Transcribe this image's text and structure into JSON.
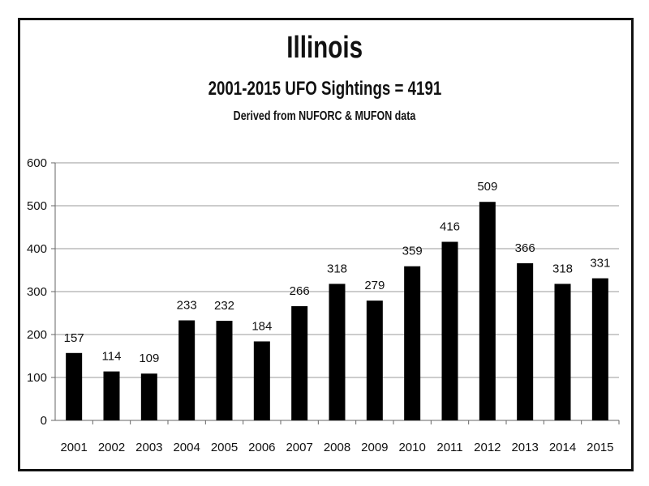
{
  "chart_data": {
    "type": "bar",
    "title": "Illinois",
    "subtitle": "2001-2015  UFO Sightings = 4191",
    "note": "Derived from NUFORC & MUFON data",
    "xlabel": "",
    "ylabel": "",
    "ylim": [
      0,
      600
    ],
    "yticks": [
      0,
      100,
      200,
      300,
      400,
      500,
      600
    ],
    "grid": true,
    "categories": [
      "2001",
      "2002",
      "2003",
      "2004",
      "2005",
      "2006",
      "2007",
      "2008",
      "2009",
      "2010",
      "2011",
      "2012",
      "2013",
      "2014",
      "2015"
    ],
    "values": [
      157,
      114,
      109,
      233,
      232,
      184,
      266,
      318,
      279,
      359,
      416,
      509,
      366,
      318,
      331
    ],
    "bar_color": "#000000"
  }
}
